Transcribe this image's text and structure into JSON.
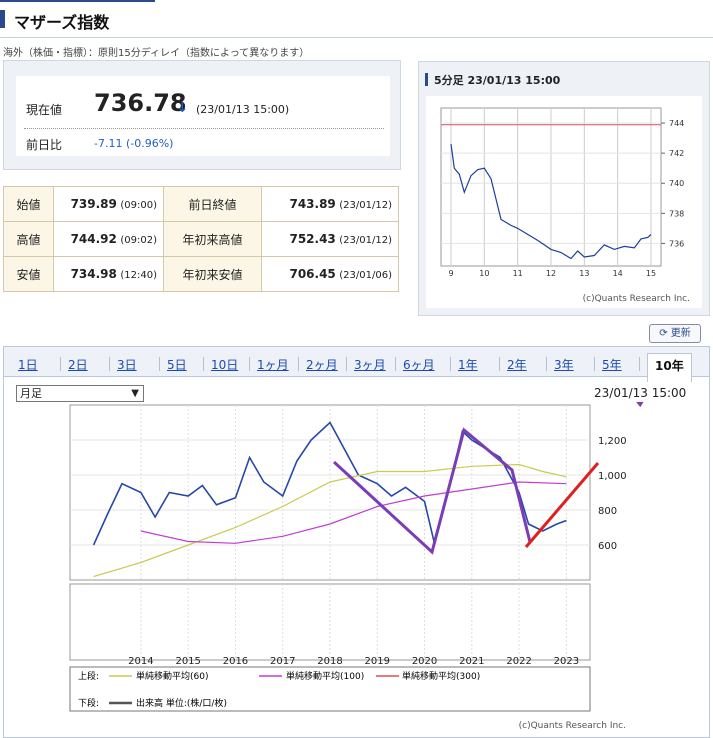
{
  "header": {
    "title": "マザーズ指数",
    "note": "海外（株価・指標）：原則15分ディレイ（指数によって異なります）"
  },
  "quote": {
    "now_label": "現在値",
    "price": "736.78",
    "arrow": "↓",
    "timestamp": "(23/01/13 15:00)",
    "prev_label": "前日比",
    "change": "-7.11 (-0.96%)"
  },
  "stats": {
    "rows": [
      {
        "l1": "始値",
        "v1": "739.89",
        "t1": "(09:00)",
        "l2": "前日終値",
        "v2": "743.89",
        "t2": "(23/01/12)"
      },
      {
        "l1": "高値",
        "v1": "744.92",
        "t1": "(09:02)",
        "l2": "年初来高値",
        "v2": "752.43",
        "t2": "(23/01/12)"
      },
      {
        "l1": "安値",
        "v1": "734.98",
        "t1": "(12:40)",
        "l2": "年初来安値",
        "v2": "706.45",
        "t2": "(23/01/06)"
      }
    ]
  },
  "intraday": {
    "title": "5分足 23/01/13 15:00",
    "credit": "(c)Quants Research Inc.",
    "chart_data": {
      "type": "line",
      "x_ticks": [
        "9",
        "10",
        "11",
        "12",
        "13",
        "14",
        "15"
      ],
      "y_ticks": [
        736,
        738,
        740,
        742,
        744
      ],
      "ylim": [
        734.5,
        745
      ],
      "reference_line": 743.89,
      "series": [
        {
          "x": [
            9.0,
            9.1,
            9.25,
            9.4,
            9.6,
            9.8,
            10.0,
            10.2,
            10.5,
            10.8,
            11.0,
            11.3,
            11.6,
            12.0,
            12.3,
            12.6,
            12.8,
            13.0,
            13.3,
            13.6,
            13.9,
            14.2,
            14.5,
            14.7,
            14.9,
            15.0
          ],
          "values": [
            742.6,
            741.0,
            740.6,
            739.4,
            740.5,
            740.9,
            741.0,
            740.3,
            737.6,
            737.2,
            737.0,
            736.6,
            736.2,
            735.6,
            735.4,
            735.0,
            735.5,
            735.1,
            735.2,
            735.9,
            735.6,
            735.8,
            735.7,
            736.3,
            736.4,
            736.6
          ]
        }
      ]
    }
  },
  "refresh_label": "更新",
  "chart": {
    "tabs": [
      "1日",
      "2日",
      "3日",
      "5日",
      "10日",
      "1ヶ月",
      "2ヶ月",
      "3ヶ月",
      "6ヶ月",
      "1年",
      "2年",
      "3年",
      "5年",
      "10年"
    ],
    "active_tab": "10年",
    "period_select": "月足",
    "timestamp": "23/01/13 15:00",
    "credit": "(c)Quants Research Inc.",
    "legend": {
      "upper_label": "上段:",
      "lower_label": "下段:",
      "ma60": "単純移動平均(60)",
      "ma100": "単純移動平均(100)",
      "ma300": "単純移動平均(300)",
      "volume": "出来高 単位:(株/口/枚)"
    },
    "chart_data": {
      "type": "line",
      "x_ticks": [
        "2014",
        "2015",
        "2016",
        "2017",
        "2018",
        "2019",
        "2020",
        "2021",
        "2022",
        "2023"
      ],
      "y_ticks": [
        600,
        800,
        1000,
        1200
      ],
      "ylim": [
        400,
        1400
      ],
      "series": [
        {
          "name": "price",
          "x": [
            2013.0,
            2013.3,
            2013.6,
            2014.0,
            2014.3,
            2014.6,
            2015.0,
            2015.3,
            2015.6,
            2016.0,
            2016.3,
            2016.6,
            2017.0,
            2017.3,
            2017.6,
            2018.0,
            2018.3,
            2018.6,
            2019.0,
            2019.3,
            2019.6,
            2020.0,
            2020.2,
            2020.5,
            2020.8,
            2021.0,
            2021.3,
            2021.6,
            2022.0,
            2022.2,
            2022.5,
            2022.8,
            2023.0
          ],
          "values": [
            600,
            780,
            950,
            900,
            760,
            900,
            880,
            940,
            830,
            870,
            1100,
            960,
            880,
            1080,
            1200,
            1300,
            1150,
            1000,
            950,
            880,
            930,
            850,
            620,
            900,
            1250,
            1200,
            1150,
            1100,
            900,
            720,
            680,
            720,
            740
          ]
        },
        {
          "name": "単純移動平均(60)",
          "x": [
            2013.0,
            2014.0,
            2015.0,
            2016.0,
            2017.0,
            2018.0,
            2019.0,
            2020.0,
            2021.0,
            2022.0,
            2022.5,
            2023.0
          ],
          "values": [
            420,
            500,
            600,
            700,
            820,
            960,
            1020,
            1020,
            1050,
            1060,
            1020,
            990
          ]
        },
        {
          "name": "単純移動平均(100)",
          "x": [
            2014.0,
            2015.0,
            2016.0,
            2017.0,
            2018.0,
            2019.0,
            2020.0,
            2021.0,
            2022.0,
            2023.0
          ],
          "values": [
            680,
            620,
            610,
            650,
            720,
            820,
            880,
            920,
            960,
            950
          ]
        }
      ]
    }
  }
}
